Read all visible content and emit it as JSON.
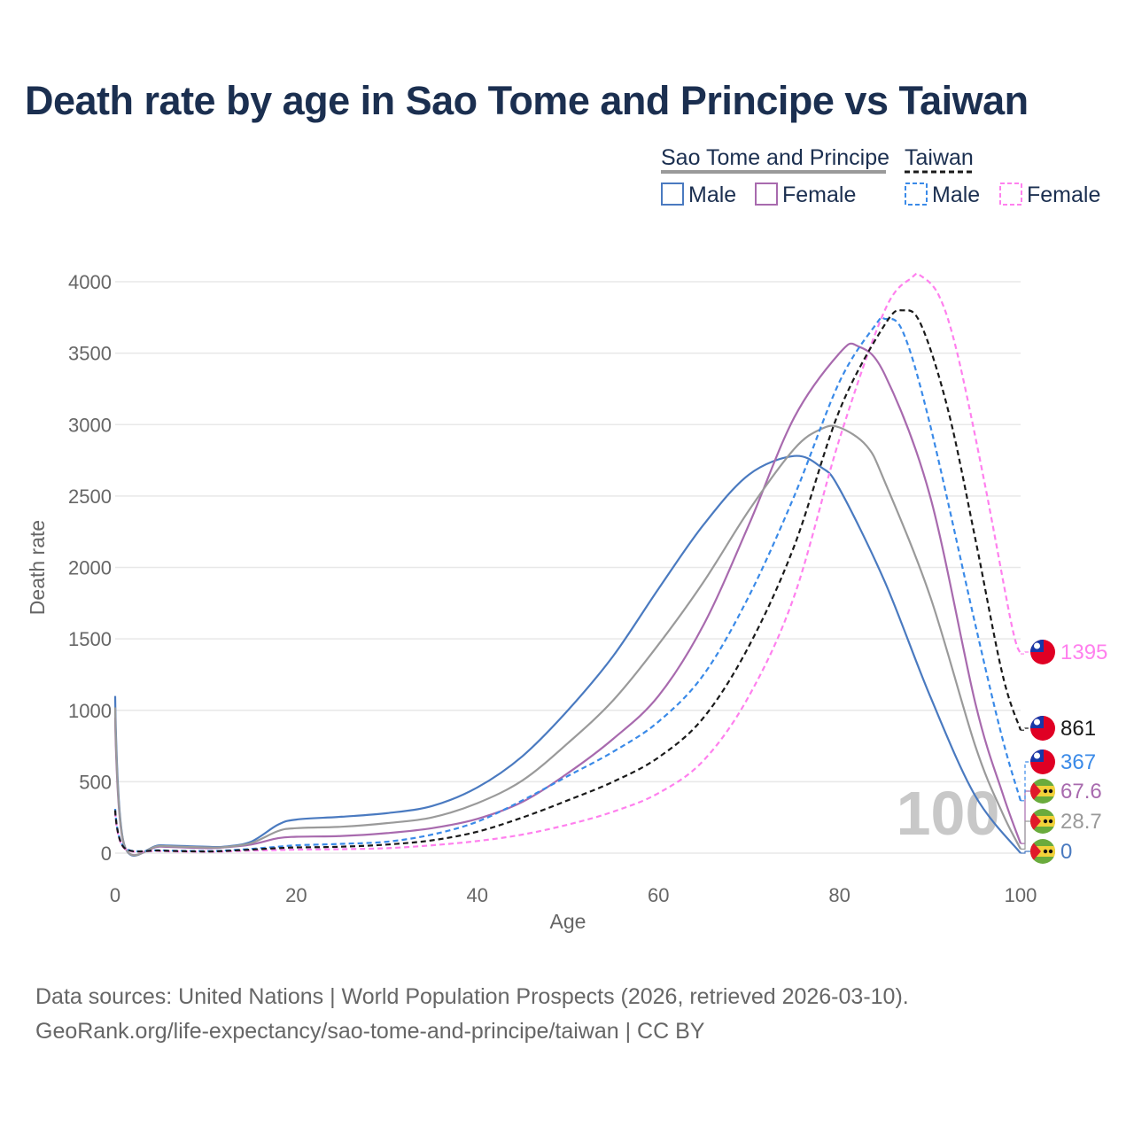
{
  "title": "Death rate by age in Sao Tome and Principe vs Taiwan",
  "source_line1": "Data sources: United Nations | World Population Prospects (2026, retrieved 2026-03-10).",
  "source_line2": "GeoRank.org/life-expectancy/sao-tome-and-principe/taiwan | CC BY",
  "watermark_age": "100",
  "legend": {
    "group1": "Sao Tome and Principe",
    "group2": "Taiwan",
    "male": "Male",
    "female": "Female"
  },
  "colors": {
    "stp_male": "#4a7ac0",
    "stp_female": "#a86aae",
    "stp_total": "#9a9a9a",
    "tw_male": "#3a8ae8",
    "tw_female": "#ff80ee",
    "tw_total": "#1a1a1a",
    "grid": "#e8e8e8",
    "title": "#1b2f50"
  },
  "chart_data": {
    "type": "line",
    "title": "Death rate by age in Sao Tome and Principe vs Taiwan",
    "xlabel": "Age",
    "ylabel": "Death rate",
    "xlim": [
      0,
      100
    ],
    "ylim": [
      0,
      4000
    ],
    "xticks": [
      0,
      20,
      40,
      60,
      80,
      100
    ],
    "yticks": [
      0,
      500,
      1000,
      1500,
      2000,
      2500,
      3000,
      3500,
      4000
    ],
    "series": [
      {
        "key": "stp_male",
        "name": "Sao Tome and Principe Male",
        "dashed": false,
        "end_label": "0",
        "points": [
          [
            0,
            1100
          ],
          [
            1,
            60
          ],
          [
            5,
            55
          ],
          [
            10,
            45
          ],
          [
            12,
            45
          ],
          [
            15,
            80
          ],
          [
            18,
            200
          ],
          [
            20,
            235
          ],
          [
            25,
            255
          ],
          [
            30,
            280
          ],
          [
            35,
            330
          ],
          [
            40,
            460
          ],
          [
            45,
            680
          ],
          [
            50,
            1000
          ],
          [
            55,
            1380
          ],
          [
            60,
            1850
          ],
          [
            65,
            2300
          ],
          [
            70,
            2650
          ],
          [
            75,
            2780
          ],
          [
            78,
            2700
          ],
          [
            80,
            2550
          ],
          [
            85,
            1900
          ],
          [
            90,
            1100
          ],
          [
            95,
            400
          ],
          [
            100,
            0
          ]
        ]
      },
      {
        "key": "stp_female",
        "name": "Sao Tome and Principe Female",
        "dashed": false,
        "end_label": "67.6",
        "points": [
          [
            0,
            950
          ],
          [
            1,
            55
          ],
          [
            5,
            45
          ],
          [
            10,
            35
          ],
          [
            12,
            40
          ],
          [
            15,
            60
          ],
          [
            18,
            105
          ],
          [
            20,
            115
          ],
          [
            25,
            120
          ],
          [
            30,
            140
          ],
          [
            35,
            175
          ],
          [
            40,
            240
          ],
          [
            45,
            360
          ],
          [
            50,
            560
          ],
          [
            55,
            800
          ],
          [
            60,
            1100
          ],
          [
            65,
            1600
          ],
          [
            70,
            2300
          ],
          [
            75,
            3050
          ],
          [
            80,
            3500
          ],
          [
            82,
            3550
          ],
          [
            85,
            3350
          ],
          [
            90,
            2500
          ],
          [
            95,
            1050
          ],
          [
            98,
            420
          ],
          [
            100,
            67.6
          ]
        ]
      },
      {
        "key": "stp_total",
        "name": "Sao Tome and Principe (both sexes)",
        "dashed": false,
        "end_label": "28.7",
        "points": [
          [
            0,
            1020
          ],
          [
            1,
            58
          ],
          [
            5,
            50
          ],
          [
            10,
            40
          ],
          [
            12,
            42
          ],
          [
            15,
            70
          ],
          [
            18,
            155
          ],
          [
            20,
            175
          ],
          [
            25,
            185
          ],
          [
            30,
            210
          ],
          [
            35,
            250
          ],
          [
            40,
            350
          ],
          [
            45,
            510
          ],
          [
            50,
            770
          ],
          [
            55,
            1070
          ],
          [
            60,
            1460
          ],
          [
            65,
            1900
          ],
          [
            70,
            2400
          ],
          [
            75,
            2830
          ],
          [
            78,
            2970
          ],
          [
            80,
            2980
          ],
          [
            83,
            2850
          ],
          [
            85,
            2600
          ],
          [
            90,
            1800
          ],
          [
            95,
            750
          ],
          [
            98,
            280
          ],
          [
            100,
            28.7
          ]
        ]
      },
      {
        "key": "tw_male",
        "name": "Taiwan Male",
        "dashed": true,
        "end_label": "367",
        "points": [
          [
            0,
            310
          ],
          [
            1,
            40
          ],
          [
            5,
            20
          ],
          [
            10,
            15
          ],
          [
            12,
            18
          ],
          [
            15,
            30
          ],
          [
            18,
            45
          ],
          [
            20,
            55
          ],
          [
            25,
            65
          ],
          [
            30,
            80
          ],
          [
            35,
            130
          ],
          [
            40,
            220
          ],
          [
            45,
            370
          ],
          [
            50,
            540
          ],
          [
            55,
            710
          ],
          [
            60,
            920
          ],
          [
            65,
            1250
          ],
          [
            70,
            1800
          ],
          [
            75,
            2500
          ],
          [
            80,
            3300
          ],
          [
            84,
            3700
          ],
          [
            85,
            3740
          ],
          [
            87,
            3650
          ],
          [
            90,
            3000
          ],
          [
            95,
            1600
          ],
          [
            98,
            800
          ],
          [
            100,
            367
          ]
        ]
      },
      {
        "key": "tw_female",
        "name": "Taiwan Female",
        "dashed": true,
        "end_label": "1395",
        "points": [
          [
            0,
            290
          ],
          [
            1,
            35
          ],
          [
            5,
            15
          ],
          [
            10,
            10
          ],
          [
            12,
            12
          ],
          [
            15,
            18
          ],
          [
            18,
            22
          ],
          [
            20,
            25
          ],
          [
            25,
            28
          ],
          [
            30,
            35
          ],
          [
            35,
            55
          ],
          [
            40,
            85
          ],
          [
            45,
            130
          ],
          [
            50,
            200
          ],
          [
            55,
            290
          ],
          [
            60,
            420
          ],
          [
            65,
            650
          ],
          [
            70,
            1100
          ],
          [
            75,
            1800
          ],
          [
            80,
            2900
          ],
          [
            85,
            3800
          ],
          [
            88,
            4030
          ],
          [
            89,
            4040
          ],
          [
            91,
            3900
          ],
          [
            93,
            3500
          ],
          [
            96,
            2600
          ],
          [
            99,
            1600
          ],
          [
            100,
            1395
          ]
        ]
      },
      {
        "key": "tw_total",
        "name": "Taiwan (both sexes)",
        "dashed": true,
        "end_label": "861",
        "points": [
          [
            0,
            300
          ],
          [
            1,
            38
          ],
          [
            5,
            18
          ],
          [
            10,
            12
          ],
          [
            12,
            15
          ],
          [
            15,
            25
          ],
          [
            18,
            35
          ],
          [
            20,
            40
          ],
          [
            25,
            45
          ],
          [
            30,
            60
          ],
          [
            35,
            90
          ],
          [
            40,
            150
          ],
          [
            45,
            250
          ],
          [
            50,
            370
          ],
          [
            55,
            500
          ],
          [
            60,
            670
          ],
          [
            65,
            950
          ],
          [
            70,
            1450
          ],
          [
            75,
            2150
          ],
          [
            80,
            3100
          ],
          [
            85,
            3700
          ],
          [
            87,
            3800
          ],
          [
            89,
            3700
          ],
          [
            92,
            3100
          ],
          [
            95,
            2200
          ],
          [
            98,
            1250
          ],
          [
            100,
            861
          ]
        ]
      }
    ]
  }
}
